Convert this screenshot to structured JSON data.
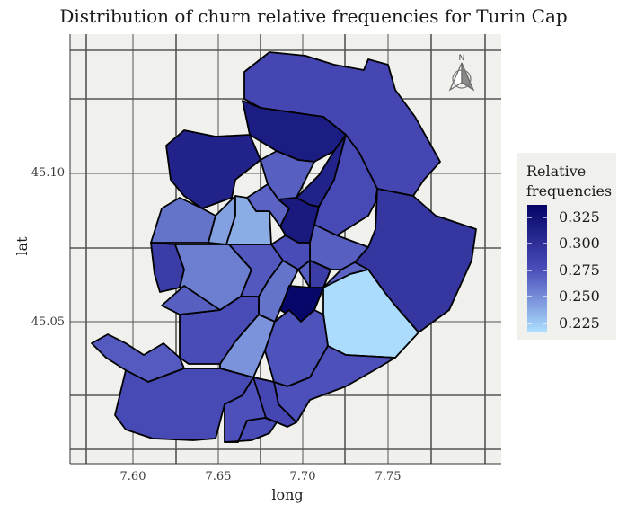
{
  "title": "Distribution of churn relative frequencies for Turin Cap",
  "x_axis": {
    "title": "long",
    "ticks": [
      "7.60",
      "7.65",
      "7.70",
      "7.75"
    ]
  },
  "y_axis": {
    "title": "lat",
    "ticks": [
      "45.10",
      "45.05"
    ]
  },
  "north_arrow": {
    "label": "N"
  },
  "legend": {
    "title_line1": "Relative",
    "title_line2": "frequencies",
    "labels": [
      "0.325",
      "0.300",
      "0.275",
      "0.250",
      "0.225"
    ]
  },
  "colors": {
    "panel": "#f0f0ec",
    "grid": "#555555",
    "scale_low": "#aee0ff",
    "scale_high": "#040466"
  },
  "chart_data": {
    "type": "choropleth",
    "title": "Distribution of churn relative frequencies for Turin Cap",
    "xlabel": "long",
    "ylabel": "lat",
    "x_ticks": [
      7.6,
      7.65,
      7.7,
      7.75
    ],
    "y_ticks": [
      45.1,
      45.05
    ],
    "legend_title": "Relative frequencies",
    "legend_breaks": [
      0.325,
      0.3,
      0.275,
      0.25,
      0.225
    ],
    "value_range": [
      0.22,
      0.335
    ],
    "legend_position": "right",
    "districts": [
      {
        "id": "north-east-large",
        "value": 0.282
      },
      {
        "id": "north-dark",
        "value": 0.315
      },
      {
        "id": "north-narrow",
        "value": 0.31
      },
      {
        "id": "north-west-dark",
        "value": 0.31
      },
      {
        "id": "north-central-mid",
        "value": 0.27
      },
      {
        "id": "north-east-inner",
        "value": 0.28
      },
      {
        "id": "east-large",
        "value": 0.295
      },
      {
        "id": "west-upper",
        "value": 0.262
      },
      {
        "id": "west-light-a",
        "value": 0.245
      },
      {
        "id": "west-light-b",
        "value": 0.24
      },
      {
        "id": "central-small-mid",
        "value": 0.268
      },
      {
        "id": "central-dark",
        "value": 0.318
      },
      {
        "id": "east-mid-small",
        "value": 0.27
      },
      {
        "id": "central-mid",
        "value": 0.278
      },
      {
        "id": "west-dark-small",
        "value": 0.29
      },
      {
        "id": "west-central-light",
        "value": 0.258
      },
      {
        "id": "central-strip",
        "value": 0.273
      },
      {
        "id": "central-cell",
        "value": 0.262
      },
      {
        "id": "central-small-2",
        "value": 0.27
      },
      {
        "id": "central-small-3",
        "value": 0.268
      },
      {
        "id": "centre-darkest",
        "value": 0.333
      },
      {
        "id": "east-small-dark",
        "value": 0.29
      },
      {
        "id": "east-lightest",
        "value": 0.222
      },
      {
        "id": "south-west-arm",
        "value": 0.272
      },
      {
        "id": "south-west-a",
        "value": 0.278
      },
      {
        "id": "south-west-b",
        "value": 0.27
      },
      {
        "id": "south-central-light",
        "value": 0.25
      },
      {
        "id": "south-central-mid",
        "value": 0.275
      },
      {
        "id": "south-east",
        "value": 0.276
      },
      {
        "id": "south-west-bottom",
        "value": 0.28
      },
      {
        "id": "south-bottom-a",
        "value": 0.276
      },
      {
        "id": "south-bottom-b",
        "value": 0.282
      },
      {
        "id": "south-bottom-c",
        "value": 0.278
      }
    ]
  }
}
